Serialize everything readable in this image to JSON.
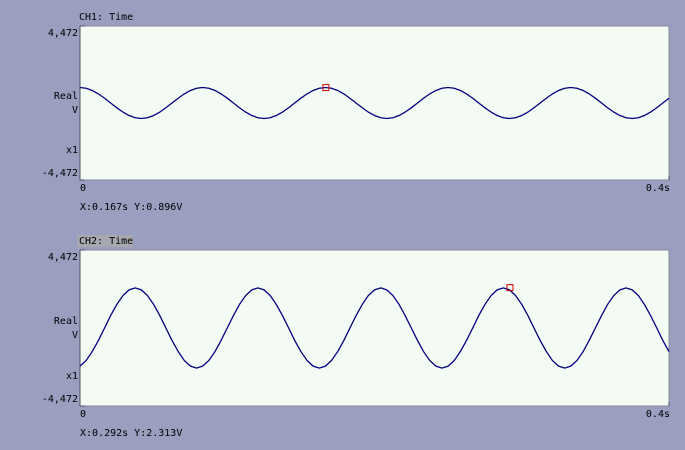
{
  "chart_data": [
    {
      "type": "line",
      "title": "CH1: Time",
      "selected": false,
      "ylabel": "Real",
      "yunit": "V",
      "yscale_label": "x1",
      "x": [
        0,
        0.0042,
        0.0083,
        0.0125,
        0.0167,
        0.0208,
        0.025,
        0.0292,
        0.0333,
        0.0375,
        0.0417,
        0.0458,
        0.05,
        0.0542,
        0.0583,
        0.0625,
        0.0667,
        0.0708,
        0.075,
        0.0792,
        0.0833,
        0.0875,
        0.0917,
        0.0958,
        0.1,
        0.1042,
        0.1083,
        0.1125,
        0.1167,
        0.1208,
        0.125,
        0.1292,
        0.1333,
        0.1375,
        0.1417,
        0.1458,
        0.15,
        0.1542,
        0.1583,
        0.1625,
        0.1667,
        0.1708,
        0.175,
        0.1792,
        0.1833,
        0.1875,
        0.1917,
        0.1958,
        0.2,
        0.2042,
        0.2083,
        0.2125,
        0.2167,
        0.2208,
        0.225,
        0.2292,
        0.2333,
        0.2375,
        0.2417,
        0.2458,
        0.25,
        0.2542,
        0.2583,
        0.2625,
        0.2667,
        0.2708,
        0.275,
        0.2792,
        0.2833,
        0.2875,
        0.2917,
        0.2958,
        0.3,
        0.3042,
        0.3083,
        0.3125,
        0.3167,
        0.3208,
        0.325,
        0.3292,
        0.3333,
        0.3375,
        0.3417,
        0.3458,
        0.35,
        0.3542,
        0.3583,
        0.3625,
        0.3667,
        0.3708,
        0.375,
        0.3792,
        0.3833,
        0.3875,
        0.3917,
        0.3958,
        0.4
      ],
      "series": [
        {
          "color": "#000080",
          "values": [
            0.9,
            0.856,
            0.728,
            0.529,
            0.278,
            0,
            -0.278,
            -0.529,
            -0.728,
            -0.856,
            -0.9,
            -0.856,
            -0.728,
            -0.529,
            -0.278,
            0,
            0.278,
            0.529,
            0.728,
            0.856,
            0.9,
            0.856,
            0.728,
            0.529,
            0.278,
            0,
            -0.278,
            -0.529,
            -0.728,
            -0.856,
            -0.9,
            -0.856,
            -0.728,
            -0.529,
            -0.278,
            0,
            0.278,
            0.529,
            0.728,
            0.856,
            0.9,
            0.856,
            0.728,
            0.529,
            0.278,
            0,
            -0.278,
            -0.529,
            -0.728,
            -0.856,
            -0.9,
            -0.856,
            -0.728,
            -0.529,
            -0.278,
            0,
            0.278,
            0.529,
            0.728,
            0.856,
            0.9,
            0.856,
            0.728,
            0.529,
            0.278,
            0,
            -0.278,
            -0.529,
            -0.728,
            -0.856,
            -0.9,
            -0.856,
            -0.728,
            -0.529,
            -0.278,
            0,
            0.278,
            0.529,
            0.728,
            0.856,
            0.9,
            0.856,
            0.728,
            0.529,
            0.278,
            0,
            -0.278,
            -0.529,
            -0.728,
            -0.856,
            -0.9,
            -0.856,
            -0.728,
            -0.529,
            -0.278,
            0,
            0.278
          ]
        }
      ],
      "xlim": [
        0,
        0.4
      ],
      "xticks": [
        0,
        {
          "value": 0.4,
          "label": "0.4s"
        }
      ],
      "ylim": [
        -4.472,
        4.472
      ],
      "yticks": [
        {
          "value": 4.472,
          "label": "4,472"
        },
        {
          "value": -4.472,
          "label": "-4,472"
        }
      ],
      "cursor": {
        "x": 0.167,
        "y": 0.896,
        "color": "#d00000",
        "label": "X:0.167s Y:0.896V"
      }
    },
    {
      "type": "line",
      "title": "CH2: Time",
      "selected": true,
      "ylabel": "Real",
      "yunit": "V",
      "yscale_label": "x1",
      "x": [
        0,
        0.0042,
        0.0083,
        0.0125,
        0.0167,
        0.0208,
        0.025,
        0.0292,
        0.0333,
        0.0375,
        0.0417,
        0.0458,
        0.05,
        0.0542,
        0.0583,
        0.0625,
        0.0667,
        0.0708,
        0.075,
        0.0792,
        0.0833,
        0.0875,
        0.0917,
        0.0958,
        0.1,
        0.1042,
        0.1083,
        0.1125,
        0.1167,
        0.1208,
        0.125,
        0.1292,
        0.1333,
        0.1375,
        0.1417,
        0.1458,
        0.15,
        0.1542,
        0.1583,
        0.1625,
        0.1667,
        0.1708,
        0.175,
        0.1792,
        0.1833,
        0.1875,
        0.1917,
        0.1958,
        0.2,
        0.2042,
        0.2083,
        0.2125,
        0.2167,
        0.2208,
        0.225,
        0.2292,
        0.2333,
        0.2375,
        0.2417,
        0.2458,
        0.25,
        0.2542,
        0.2583,
        0.2625,
        0.2667,
        0.2708,
        0.275,
        0.2792,
        0.2833,
        0.2875,
        0.2917,
        0.2958,
        0.3,
        0.3042,
        0.3083,
        0.3125,
        0.3167,
        0.3208,
        0.325,
        0.3292,
        0.3333,
        0.3375,
        0.3417,
        0.3458,
        0.35,
        0.3542,
        0.3583,
        0.3625,
        0.3667,
        0.3708,
        0.375,
        0.3792,
        0.3833,
        0.3875,
        0.3917,
        0.3958,
        0.4
      ],
      "series": [
        {
          "color": "#000080",
          "values": [
            -2.187,
            -1.861,
            -1.352,
            -0.711,
            0,
            0.711,
            1.352,
            1.861,
            2.187,
            2.3,
            2.187,
            1.861,
            1.352,
            0.711,
            0,
            -0.711,
            -1.352,
            -1.861,
            -2.187,
            -2.3,
            -2.187,
            -1.861,
            -1.352,
            -0.711,
            0,
            0.711,
            1.352,
            1.861,
            2.187,
            2.3,
            2.187,
            1.861,
            1.352,
            0.711,
            0,
            -0.711,
            -1.352,
            -1.861,
            -2.187,
            -2.3,
            -2.187,
            -1.861,
            -1.352,
            -0.711,
            0,
            0.711,
            1.352,
            1.861,
            2.187,
            2.3,
            2.187,
            1.861,
            1.352,
            0.711,
            0,
            -0.711,
            -1.352,
            -1.861,
            -2.187,
            -2.3,
            -2.187,
            -1.861,
            -1.352,
            -0.711,
            0,
            0.711,
            1.352,
            1.861,
            2.187,
            2.3,
            2.187,
            1.861,
            1.352,
            0.711,
            0,
            -0.711,
            -1.352,
            -1.861,
            -2.187,
            -2.3,
            -2.187,
            -1.861,
            -1.352,
            -0.711,
            0,
            0.711,
            1.352,
            1.861,
            2.187,
            2.3,
            2.187,
            1.861,
            1.352,
            0.711,
            0,
            -0.711,
            -1.352
          ]
        }
      ],
      "xlim": [
        0,
        0.4
      ],
      "xticks": [
        0,
        {
          "value": 0.4,
          "label": "0.4s"
        }
      ],
      "ylim": [
        -4.472,
        4.472
      ],
      "yticks": [
        {
          "value": 4.472,
          "label": "4,472"
        },
        {
          "value": -4.472,
          "label": "-4,472"
        }
      ],
      "cursor": {
        "x": 0.292,
        "y": 2.313,
        "color": "#d00000",
        "label": "X:0.292s Y:2.313V"
      }
    }
  ]
}
